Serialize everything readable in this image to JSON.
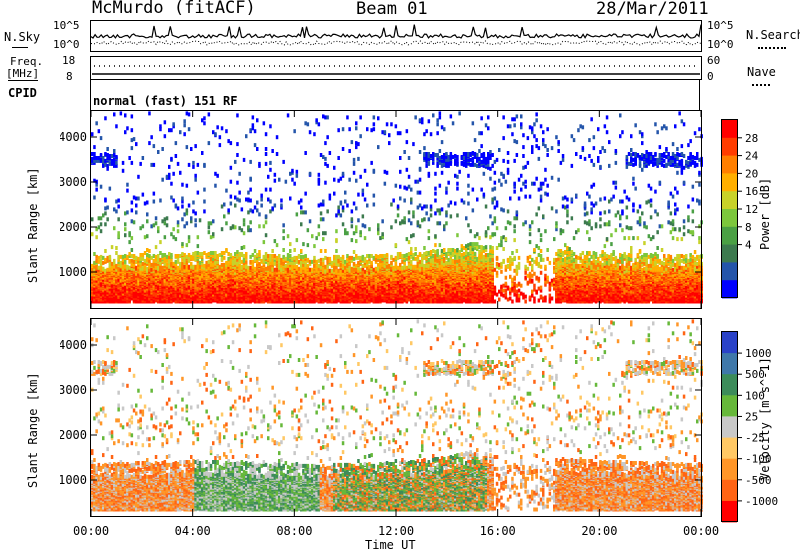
{
  "header": {
    "station": "McMurdo (fitACF)",
    "beam": "Beam 01",
    "date": "28/Mar/2011"
  },
  "sky_panel": {
    "left_label": "N.Sky",
    "right_label": "N.Search",
    "left_ticks": [
      "10^5",
      "10^0"
    ],
    "right_ticks": [
      "10^5",
      "10^0"
    ]
  },
  "freq_panel": {
    "left_label_line1": "Freq.",
    "left_label_line2": "[MHz]",
    "right_label": "Nave",
    "left_ticks": [
      "18",
      "8"
    ],
    "right_ticks": [
      "60",
      "0"
    ]
  },
  "cpid": {
    "label": "CPID",
    "value": "normal (fast) 151 RF"
  },
  "chart_data": [
    {
      "type": "heatmap",
      "quantity": "Power",
      "xlabel": "",
      "ylabel": "Slant Range [km]",
      "x_range_hours": [
        0,
        24
      ],
      "y_range_km": [
        200,
        4600
      ],
      "y_ticks": [
        "1000",
        "2000",
        "3000",
        "4000"
      ],
      "colorbar_label": "Power [dB]",
      "colorbar_ticks": [
        "28",
        "24",
        "20",
        "16",
        "12",
        "8",
        "4"
      ],
      "colorbar_colors": [
        "#0000ff",
        "#2455aa",
        "#3c7a4e",
        "#4aa044",
        "#7cc73c",
        "#c8d229",
        "#ffaf00",
        "#ff7f00",
        "#ff3c00",
        "#ff0000"
      ],
      "description_points_km_by_hour": {
        "dense_band_center_km": [
          700,
          720,
          740,
          760,
          780,
          790,
          760,
          720,
          700,
          680,
          700,
          720,
          760,
          800,
          860,
          1000,
          900,
          600,
          850,
          800,
          780,
          760,
          740,
          720,
          720
        ]
      }
    },
    {
      "type": "heatmap",
      "quantity": "Velocity",
      "xlabel": "Time UT",
      "ylabel": "Slant Range [km]",
      "x_range_hours": [
        0,
        24
      ],
      "y_range_km": [
        200,
        4600
      ],
      "x_ticks": [
        "00:00",
        "04:00",
        "08:00",
        "12:00",
        "16:00",
        "20:00",
        "00:00"
      ],
      "y_ticks": [
        "1000",
        "2000",
        "3000",
        "4000"
      ],
      "colorbar_label": "Velocity [m s^-1]",
      "colorbar_ticks": [
        "1000",
        "500",
        "100",
        "25",
        "-25",
        "-100",
        "-500",
        "-1000"
      ],
      "colorbar_colors": [
        "#2a42c8",
        "#3f78aa",
        "#3c8c5a",
        "#66b83a",
        "#c8c8c8",
        "#ffc864",
        "#ff9628",
        "#ff6414",
        "#ff0000"
      ]
    }
  ]
}
